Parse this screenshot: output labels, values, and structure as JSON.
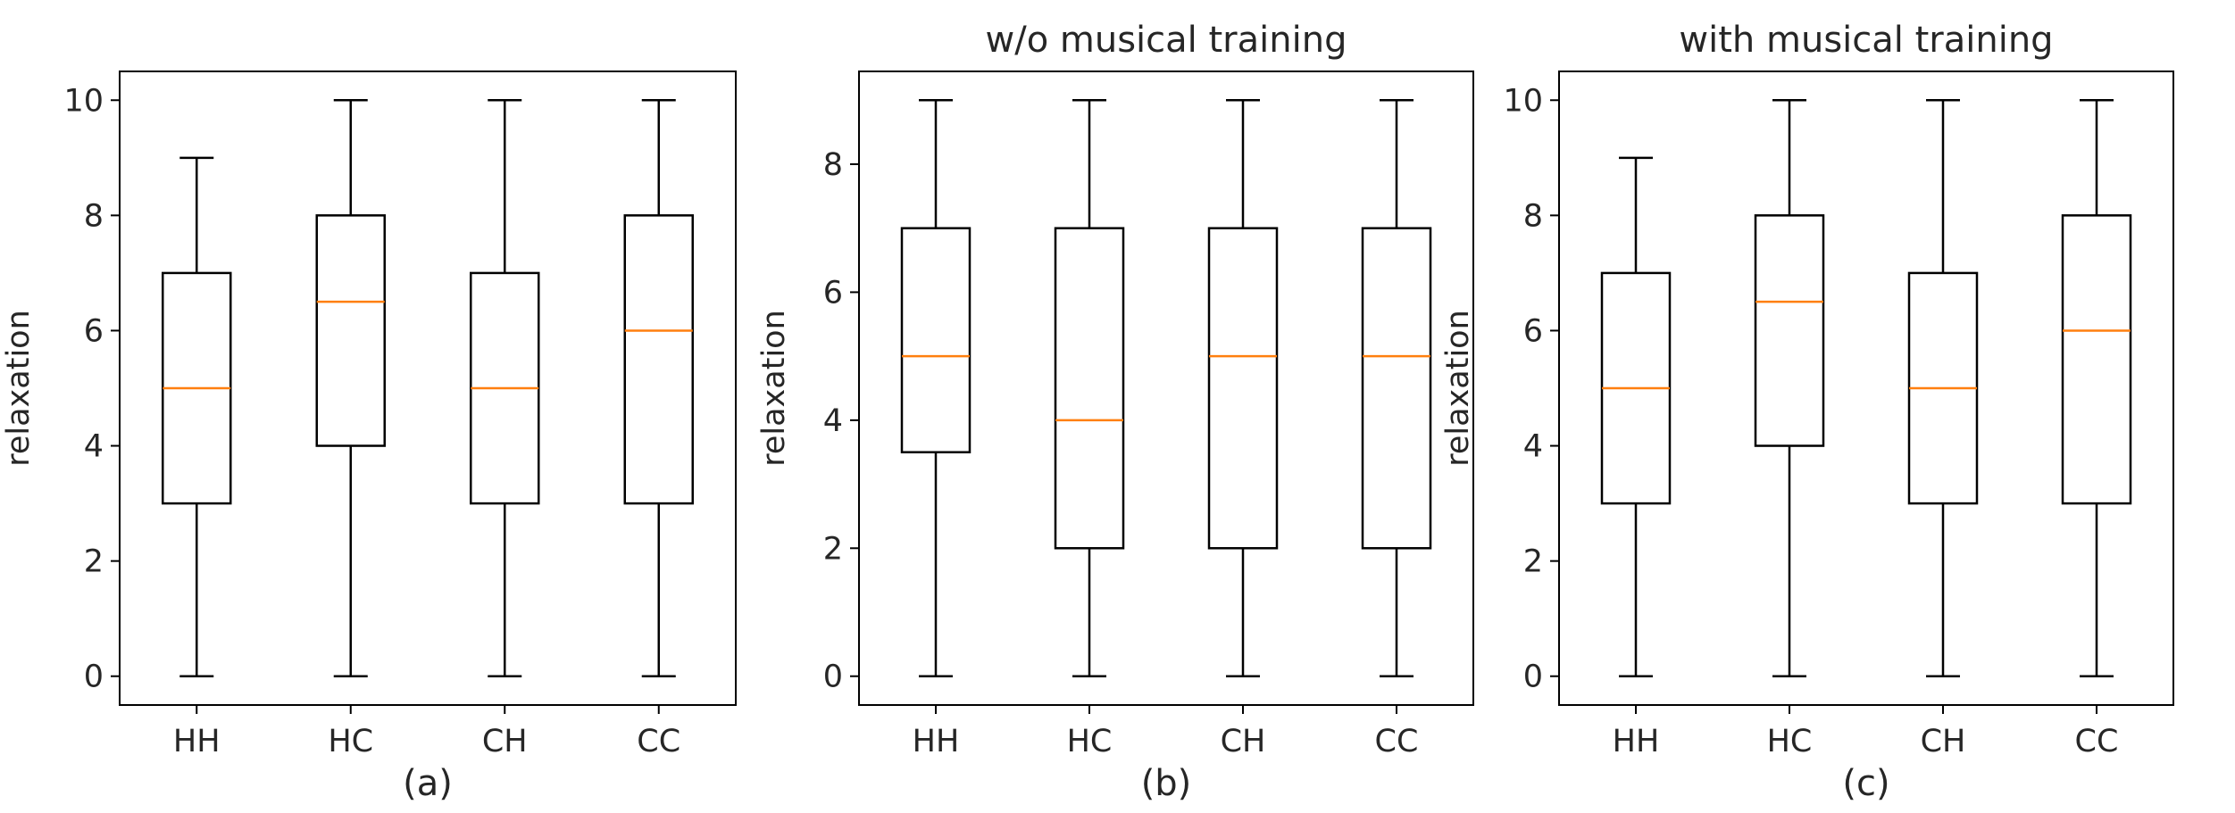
{
  "chart_data": [
    {
      "type": "box",
      "title": "",
      "caption": "(a)",
      "xlabel": "",
      "ylabel": "relaxation",
      "ylim": [
        -0.5,
        10.5
      ],
      "yticks": [
        0,
        2,
        4,
        6,
        8,
        10
      ],
      "categories": [
        "HH",
        "HC",
        "CH",
        "CC"
      ],
      "boxes": [
        {
          "category": "HH",
          "whislo": 0,
          "q1": 3,
          "med": 5,
          "q3": 7,
          "whishi": 9
        },
        {
          "category": "HC",
          "whislo": 0,
          "q1": 4,
          "med": 6.5,
          "q3": 8,
          "whishi": 10
        },
        {
          "category": "CH",
          "whislo": 0,
          "q1": 3,
          "med": 5,
          "q3": 7,
          "whishi": 10
        },
        {
          "category": "CC",
          "whislo": 0,
          "q1": 3,
          "med": 6,
          "q3": 8,
          "whishi": 10
        }
      ]
    },
    {
      "type": "box",
      "title": "w/o musical training",
      "caption": "(b)",
      "xlabel": "",
      "ylabel": "relaxation",
      "ylim": [
        -0.45,
        9.45
      ],
      "yticks": [
        0,
        2,
        4,
        6,
        8
      ],
      "categories": [
        "HH",
        "HC",
        "CH",
        "CC"
      ],
      "boxes": [
        {
          "category": "HH",
          "whislo": 0,
          "q1": 3.5,
          "med": 5,
          "q3": 7,
          "whishi": 9
        },
        {
          "category": "HC",
          "whislo": 0,
          "q1": 2,
          "med": 4,
          "q3": 7,
          "whishi": 9
        },
        {
          "category": "CH",
          "whislo": 0,
          "q1": 2,
          "med": 5,
          "q3": 7,
          "whishi": 9
        },
        {
          "category": "CC",
          "whislo": 0,
          "q1": 2,
          "med": 5,
          "q3": 7,
          "whishi": 9
        }
      ]
    },
    {
      "type": "box",
      "title": "with musical training",
      "caption": "(c)",
      "xlabel": "",
      "ylabel": "relaxation",
      "ylim": [
        -0.5,
        10.5
      ],
      "yticks": [
        0,
        2,
        4,
        6,
        8,
        10
      ],
      "categories": [
        "HH",
        "HC",
        "CH",
        "CC"
      ],
      "boxes": [
        {
          "category": "HH",
          "whislo": 0,
          "q1": 3,
          "med": 5,
          "q3": 7,
          "whishi": 9
        },
        {
          "category": "HC",
          "whislo": 0,
          "q1": 4,
          "med": 6.5,
          "q3": 8,
          "whishi": 10
        },
        {
          "category": "CH",
          "whislo": 0,
          "q1": 3,
          "med": 5,
          "q3": 7,
          "whishi": 10
        },
        {
          "category": "CC",
          "whislo": 0,
          "q1": 3,
          "med": 6,
          "q3": 8,
          "whishi": 10
        }
      ]
    }
  ],
  "colors": {
    "box": "#000000",
    "median": "#ff7f0e",
    "text": "#262626",
    "background": "#ffffff"
  }
}
